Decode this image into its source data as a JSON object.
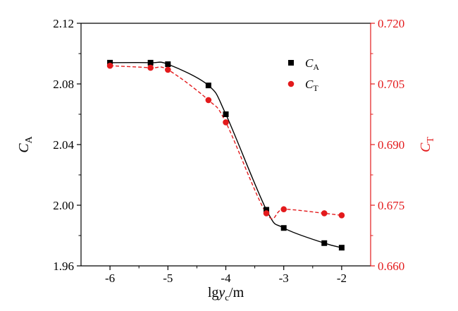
{
  "chart_data": {
    "type": "scatter",
    "x": [
      -6,
      -5.3,
      -5,
      -4.3,
      -4,
      -3.3,
      -3,
      -2.3,
      -2
    ],
    "xlabel": {
      "main": "lg",
      "var": "y",
      "sub": "c",
      "unit": "/m"
    },
    "xlim": [
      -6.5,
      -1.5
    ],
    "xticks": [
      -6,
      -5,
      -4,
      -3,
      -2
    ],
    "xtick_labels": [
      "-6",
      "-5",
      "-4",
      "-3",
      "-2"
    ],
    "left_axis": {
      "label_var": "C",
      "label_sub": "A",
      "ylim": [
        1.96,
        2.12
      ],
      "ticks": [
        1.96,
        2.0,
        2.04,
        2.08,
        2.12
      ],
      "tick_labels": [
        "1.96",
        "2.00",
        "2.04",
        "2.08",
        "2.12"
      ],
      "color": "#000000"
    },
    "right_axis": {
      "label_var": "C",
      "label_sub": "T",
      "ylim": [
        0.66,
        0.72
      ],
      "ticks": [
        0.66,
        0.675,
        0.69,
        0.705,
        0.72
      ],
      "tick_labels": [
        "0.660",
        "0.675",
        "0.690",
        "0.705",
        "0.720"
      ],
      "color": "#e31a1c"
    },
    "series": [
      {
        "name_var": "C",
        "name_sub": "A",
        "axis": "left",
        "marker": "square",
        "line": "solid",
        "color": "#000000",
        "values": [
          2.094,
          2.094,
          2.093,
          2.079,
          2.06,
          1.997,
          1.985,
          1.975,
          1.972
        ]
      },
      {
        "name_var": "C",
        "name_sub": "T",
        "axis": "right",
        "marker": "circle",
        "line": "dashed",
        "color": "#e31a1c",
        "values": [
          0.7095,
          0.709,
          0.7085,
          0.701,
          0.6955,
          0.673,
          0.674,
          0.673,
          0.6725
        ]
      }
    ],
    "legend_position": "top-right",
    "grid": false
  }
}
